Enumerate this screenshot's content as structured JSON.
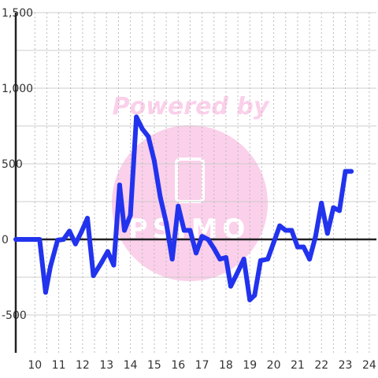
{
  "watermark": {
    "line1": "Powered by",
    "logo": "PSIMO",
    "circle_color": "#fbd0ea"
  },
  "chart_data": {
    "type": "line",
    "title": "",
    "xlabel": "",
    "ylabel": "",
    "xlim": [
      9.2,
      24.3
    ],
    "ylim": [
      -750,
      1500
    ],
    "x_ticks": [
      10,
      11,
      12,
      13,
      14,
      15,
      16,
      17,
      18,
      19,
      20,
      21,
      22,
      23,
      24
    ],
    "x_tick_labels": [
      "10",
      "11",
      "12",
      "13",
      "14",
      "15",
      "16",
      "17",
      "18",
      "19",
      "20",
      "21",
      "22",
      "23",
      "24"
    ],
    "y_ticks": [
      1500,
      1000,
      500,
      0,
      -500
    ],
    "y_tick_labels": [
      "1,500",
      "1,000",
      "500",
      "0",
      "-500"
    ],
    "grid": {
      "horizontal": true,
      "vertical": "dotted"
    },
    "line_color": "#2233ee",
    "series": [
      {
        "x": [
          9.2,
          9.6,
          10.0,
          10.2,
          10.45,
          10.65,
          10.95,
          11.2,
          11.45,
          11.7,
          11.95,
          12.2,
          12.45,
          12.8,
          13.05,
          13.3,
          13.55,
          13.75,
          14.0,
          14.25,
          14.5,
          14.75,
          15.0,
          15.25,
          15.5,
          15.75,
          16.0,
          16.25,
          16.5,
          16.75,
          17.0,
          17.25,
          17.5,
          17.75,
          18.0,
          18.2,
          18.45,
          18.75,
          19.0,
          19.2,
          19.45,
          19.75,
          20.0,
          20.25,
          20.5,
          20.75,
          21.0,
          21.25,
          21.5,
          21.75,
          22.0,
          22.25,
          22.5,
          22.75,
          23.0,
          23.25
        ],
        "y": [
          0,
          0,
          0,
          0,
          -350,
          -180,
          -5,
          0,
          55,
          -30,
          50,
          140,
          -240,
          -150,
          -80,
          -170,
          360,
          60,
          160,
          810,
          730,
          680,
          520,
          280,
          110,
          -130,
          220,
          60,
          60,
          -90,
          20,
          0,
          -60,
          -130,
          -120,
          -310,
          -230,
          -130,
          -400,
          -370,
          -140,
          -130,
          -20,
          90,
          60,
          60,
          -50,
          -50,
          -130,
          20,
          240,
          40,
          210,
          190,
          450,
          450
        ]
      }
    ]
  }
}
